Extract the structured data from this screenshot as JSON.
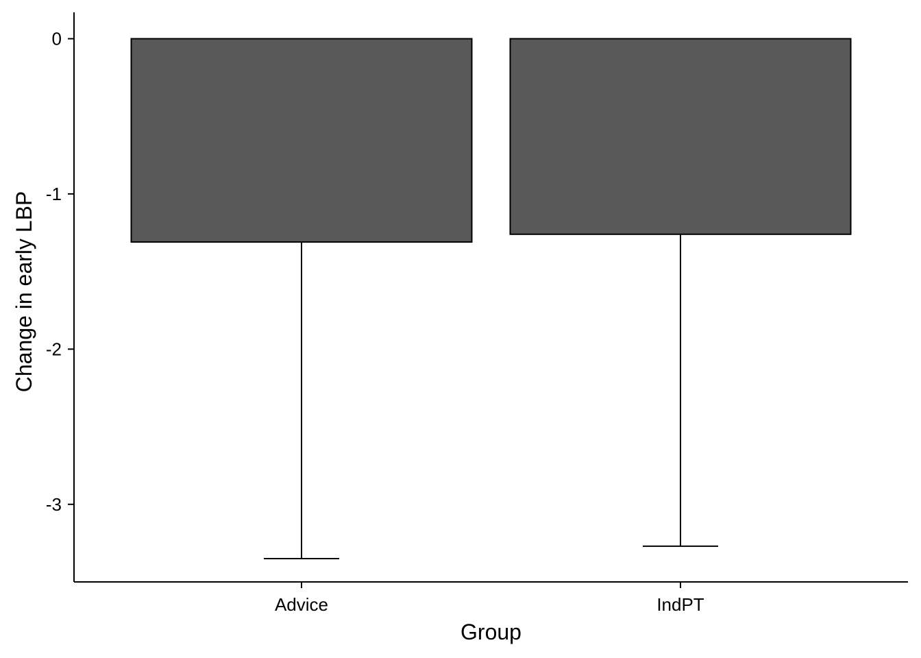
{
  "chart_data": {
    "type": "bar",
    "title": "",
    "xlabel": "Group",
    "ylabel": "Change in early LBP",
    "categories": [
      "Advice",
      "IndPT"
    ],
    "values": [
      -1.31,
      -1.26
    ],
    "error_bars": {
      "lower": [
        -3.35,
        -3.27
      ]
    },
    "ylim": [
      -3.5,
      0.17
    ],
    "yticks": [
      0,
      -1,
      -2,
      -3
    ],
    "ytick_labels": [
      "0",
      "-1",
      "-2",
      "-3"
    ],
    "grid": false,
    "legend": "none",
    "colors": {
      "bar_fill": "#595959",
      "bar_stroke": "#000000",
      "axis": "#000000"
    }
  }
}
